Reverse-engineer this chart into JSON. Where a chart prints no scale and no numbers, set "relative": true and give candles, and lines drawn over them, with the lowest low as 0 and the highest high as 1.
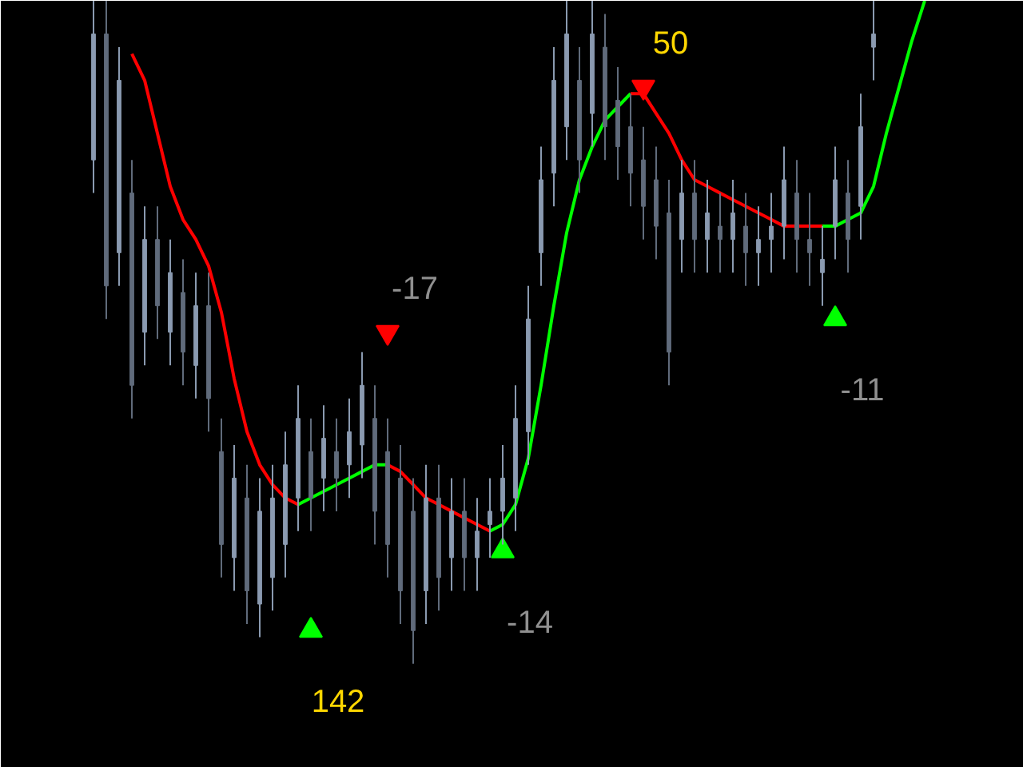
{
  "chart_data": {
    "type": "candlestick",
    "relative": true,
    "colors": [
      "#8a9ab0",
      "#606b7b",
      "#8a9ab0",
      "#606b7b",
      "#8a9ab0",
      "#606b7b",
      "#8a9ab0",
      "#606b7b",
      "#8a9ab0",
      "#606b7b",
      "#606b7b",
      "#8a9ab0",
      "#606b7b",
      "#8a9ab0",
      "#8a9ab0",
      "#8a9ab0",
      "#8a9ab0",
      "#606b7b",
      "#8a9ab0",
      "#606b7b",
      "#8a9ab0",
      "#8a9ab0",
      "#606b7b",
      "#606b7b",
      "#606b7b",
      "#606b7b",
      "#8a9ab0",
      "#606b7b",
      "#8a9ab0",
      "#606b7b",
      "#8a9ab0",
      "#8a9ab0",
      "#8a9ab0",
      "#8a9ab0",
      "#8a9ab0",
      "#8a9ab0",
      "#8a9ab0",
      "#8a9ab0",
      "#606b7b",
      "#8a9ab0",
      "#606b7b",
      "#606b7b",
      "#606b7b",
      "#606b7b",
      "#606b7b",
      "#606b7b",
      "#8a9ab0",
      "#606b7b",
      "#8a9ab0",
      "#606b7b",
      "#8a9ab0",
      "#606b7b",
      "#8a9ab0",
      "#8a9ab0",
      "#8a9ab0",
      "#606b7b",
      "#606b7b",
      "#8a9ab0",
      "#8a9ab0",
      "#606b7b",
      "#8a9ab0",
      "#8a9ab0",
      null,
      null,
      null,
      null
    ],
    "annotations": [
      "142",
      "-17",
      "-14",
      "50",
      "-11"
    ],
    "categories": [
      null,
      null,
      null,
      null,
      null,
      null,
      null,
      null,
      null,
      null,
      null,
      null,
      null,
      null,
      null,
      null,
      null,
      null,
      null,
      null,
      null,
      null,
      null,
      null,
      null,
      null,
      null,
      null,
      null,
      null,
      null,
      null,
      null,
      null,
      null,
      null,
      null,
      null,
      null,
      null,
      null,
      null,
      null,
      null,
      null,
      null,
      null,
      null,
      null,
      null,
      null,
      null,
      null,
      null,
      null,
      null,
      null,
      null,
      null,
      null,
      null,
      null,
      null,
      null,
      null,
      null
    ],
    "ohlc": [
      [
        0.76,
        1.0,
        0.71,
        0.95
      ],
      [
        0.95,
        1.0,
        0.52,
        0.57
      ],
      [
        0.62,
        0.93,
        0.57,
        0.88
      ],
      [
        0.71,
        0.76,
        0.37,
        0.42
      ],
      [
        0.5,
        0.69,
        0.45,
        0.64
      ],
      [
        0.64,
        0.69,
        0.49,
        0.54
      ],
      [
        0.5,
        0.64,
        0.45,
        0.59
      ],
      [
        0.56,
        0.61,
        0.42,
        0.47
      ],
      [
        0.45,
        0.59,
        0.4,
        0.54
      ],
      [
        0.54,
        0.59,
        0.35,
        0.4
      ],
      [
        0.32,
        0.37,
        0.13,
        0.18
      ],
      [
        0.16,
        0.33,
        0.11,
        0.28
      ],
      [
        0.25,
        0.3,
        0.06,
        0.11
      ],
      [
        0.09,
        0.28,
        0.04,
        0.23
      ],
      [
        0.13,
        0.3,
        0.08,
        0.25
      ],
      [
        0.18,
        0.35,
        0.13,
        0.3
      ],
      [
        0.25,
        0.42,
        0.2,
        0.37
      ],
      [
        0.32,
        0.37,
        0.2,
        0.25
      ],
      [
        0.28,
        0.39,
        0.23,
        0.34
      ],
      [
        0.32,
        0.37,
        0.23,
        0.28
      ],
      [
        0.3,
        0.4,
        0.25,
        0.35
      ],
      [
        0.33,
        0.47,
        0.28,
        0.42
      ],
      [
        0.37,
        0.42,
        0.18,
        0.23
      ],
      [
        0.32,
        0.37,
        0.13,
        0.18
      ],
      [
        0.28,
        0.33,
        0.06,
        0.11
      ],
      [
        0.23,
        0.28,
        0.0,
        0.05
      ],
      [
        0.11,
        0.3,
        0.06,
        0.25
      ],
      [
        0.25,
        0.3,
        0.08,
        0.13
      ],
      [
        0.16,
        0.28,
        0.11,
        0.23
      ],
      [
        0.23,
        0.28,
        0.11,
        0.16
      ],
      [
        0.16,
        0.25,
        0.11,
        0.2
      ],
      [
        0.21,
        0.28,
        0.16,
        0.23
      ],
      [
        0.23,
        0.33,
        0.18,
        0.28
      ],
      [
        0.25,
        0.42,
        0.2,
        0.37
      ],
      [
        0.35,
        0.57,
        0.3,
        0.52
      ],
      [
        0.62,
        0.78,
        0.57,
        0.73
      ],
      [
        0.74,
        0.93,
        0.69,
        0.88
      ],
      [
        0.81,
        1.0,
        0.76,
        0.95
      ],
      [
        0.88,
        0.93,
        0.71,
        0.76
      ],
      [
        0.83,
        1.0,
        0.78,
        0.95
      ],
      [
        0.93,
        0.98,
        0.76,
        0.81
      ],
      [
        0.85,
        0.9,
        0.73,
        0.78
      ],
      [
        0.81,
        0.86,
        0.69,
        0.74
      ],
      [
        0.76,
        0.81,
        0.64,
        0.69
      ],
      [
        0.73,
        0.78,
        0.61,
        0.66
      ],
      [
        0.68,
        0.73,
        0.42,
        0.47
      ],
      [
        0.64,
        0.76,
        0.59,
        0.71
      ],
      [
        0.71,
        0.76,
        0.59,
        0.64
      ],
      [
        0.64,
        0.73,
        0.59,
        0.68
      ],
      [
        0.66,
        0.71,
        0.59,
        0.64
      ],
      [
        0.64,
        0.73,
        0.59,
        0.68
      ],
      [
        0.66,
        0.71,
        0.57,
        0.62
      ],
      [
        0.62,
        0.69,
        0.57,
        0.64
      ],
      [
        0.64,
        0.71,
        0.59,
        0.66
      ],
      [
        0.66,
        0.78,
        0.61,
        0.73
      ],
      [
        0.71,
        0.76,
        0.59,
        0.64
      ],
      [
        0.64,
        0.71,
        0.57,
        0.62
      ],
      [
        0.59,
        0.66,
        0.54,
        0.61
      ],
      [
        0.66,
        0.78,
        0.61,
        0.73
      ],
      [
        0.71,
        0.76,
        0.59,
        0.64
      ],
      [
        0.69,
        0.86,
        0.64,
        0.81
      ],
      [
        0.93,
        1.0,
        0.88,
        0.95
      ],
      null,
      null,
      null,
      null
    ],
    "series": [
      {
        "type": "line",
        "color": "#ff0000",
        "values": [
          null,
          null,
          null,
          0.92,
          0.88,
          0.8,
          0.72,
          0.67,
          0.64,
          0.6,
          0.53,
          0.43,
          0.35,
          0.3,
          0.27,
          0.25,
          0.24,
          null,
          null,
          null,
          null,
          null,
          null,
          0.3,
          0.29,
          0.27,
          0.25,
          0.24,
          0.23,
          0.22,
          0.21,
          0.2,
          null,
          null,
          null,
          null,
          null,
          null,
          null,
          null,
          null,
          null,
          0.86,
          0.86,
          0.83,
          0.8,
          0.76,
          0.73,
          0.72,
          0.71,
          0.7,
          0.69,
          0.68,
          0.67,
          0.66,
          0.66,
          0.66,
          0.66,
          null,
          null,
          null,
          null,
          null,
          null,
          null,
          null
        ]
      },
      {
        "type": "line",
        "color": "#00ff00",
        "values": [
          null,
          null,
          null,
          null,
          null,
          null,
          null,
          null,
          null,
          null,
          null,
          null,
          null,
          null,
          null,
          null,
          0.24,
          0.25,
          0.26,
          0.27,
          0.28,
          0.29,
          0.3,
          0.3,
          null,
          null,
          null,
          null,
          null,
          null,
          null,
          0.2,
          0.21,
          0.24,
          0.31,
          0.42,
          0.54,
          0.65,
          0.73,
          0.78,
          0.82,
          0.84,
          0.86,
          null,
          null,
          null,
          null,
          null,
          null,
          null,
          null,
          null,
          null,
          null,
          null,
          null,
          null,
          0.66,
          0.66,
          0.67,
          0.68,
          0.72,
          0.8,
          0.87,
          0.94,
          1.0
        ]
      },
      {
        "type": "scatter",
        "color": "#00ff00",
        "marker": "triangle",
        "values": [
          null,
          null,
          null,
          null,
          null,
          null,
          null,
          null,
          null,
          null,
          null,
          null,
          null,
          null,
          null,
          null,
          null,
          0.05,
          null,
          null,
          null,
          null,
          null,
          null,
          null,
          null,
          null,
          null,
          null,
          null,
          null,
          null,
          0.17,
          null,
          null,
          null,
          null,
          null,
          null,
          null,
          null,
          null,
          null,
          null,
          null,
          null,
          null,
          null,
          null,
          null,
          null,
          null,
          null,
          null,
          null,
          null,
          null,
          null,
          0.52,
          null,
          null,
          null,
          null,
          null,
          null,
          null
        ]
      },
      {
        "type": "scatter",
        "color": "#ff0000",
        "marker": "triangle_down",
        "values": [
          null,
          null,
          null,
          null,
          null,
          null,
          null,
          null,
          null,
          null,
          null,
          null,
          null,
          null,
          null,
          null,
          null,
          null,
          null,
          null,
          null,
          null,
          null,
          0.5,
          null,
          null,
          null,
          null,
          null,
          null,
          null,
          null,
          null,
          null,
          null,
          null,
          null,
          null,
          null,
          null,
          null,
          null,
          null,
          0.87,
          null,
          null,
          null,
          null,
          null,
          null,
          null,
          null,
          null,
          null,
          null,
          null,
          null,
          null,
          null,
          null,
          null,
          null,
          null,
          null,
          null,
          null
        ]
      }
    ]
  }
}
